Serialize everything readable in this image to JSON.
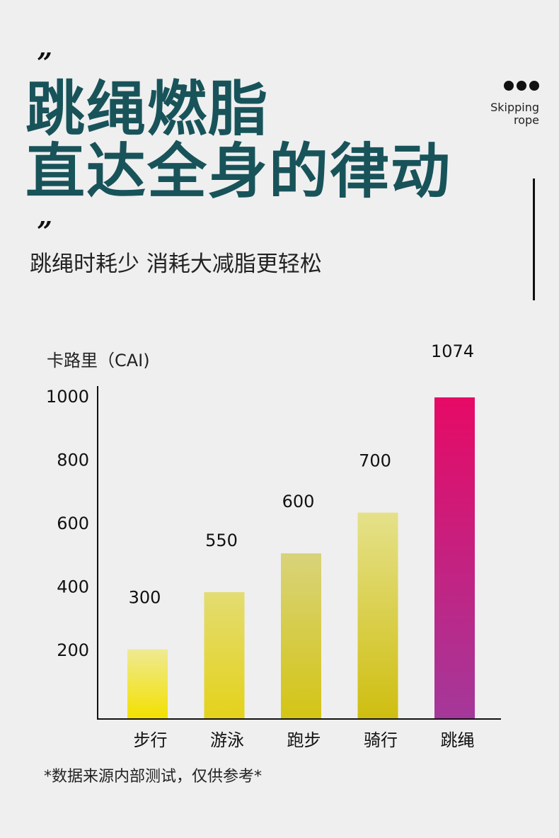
{
  "header": {
    "headline_line1": "跳绳燃脂",
    "headline_line2": "直达全身的律动",
    "subtitle": "跳绳时耗少 消耗大减脂更轻松",
    "side_label_line1": "Skipping",
    "side_label_line2": "rope",
    "quote_open": "”",
    "quote_close": "”"
  },
  "chart_data": {
    "type": "bar",
    "ylabel": "卡路里（CAI)",
    "categories": [
      "步行",
      "游泳",
      "跑步",
      "骑行",
      "跳绳"
    ],
    "values": [
      300,
      550,
      600,
      700,
      1074
    ],
    "data_labels": [
      "300",
      "550",
      "600",
      "700",
      "1074"
    ],
    "display_fractions": [
      0.215,
      0.393,
      0.514,
      0.641,
      1.0
    ],
    "yticks": [
      "200",
      "400",
      "600",
      "800",
      "1000"
    ],
    "colors": {
      "bar_top": [
        "#efea92",
        "#e3dc72",
        "#d8d37a",
        "#e5e18a",
        "#e60a66"
      ],
      "bar_bottom": [
        "#f3e000",
        "#e4d21a",
        "#d4c515",
        "#cfbe10",
        "#a4389a"
      ]
    },
    "grid": false
  },
  "footnote": "*数据来源内部测试，仅供参考*"
}
